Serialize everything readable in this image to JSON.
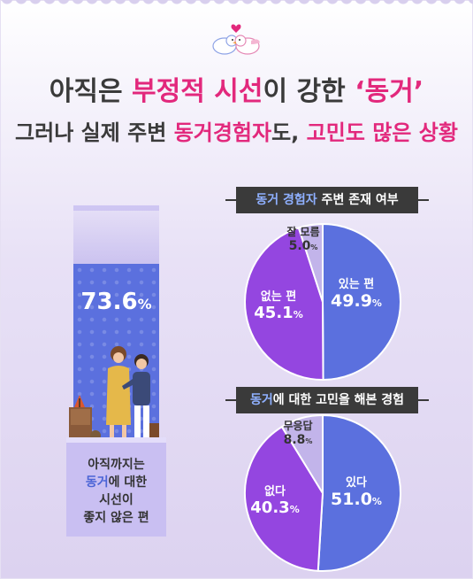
{
  "colors": {
    "accent_pink": "#e2287c",
    "blue": "#5b70de",
    "purple": "#9446e0",
    "lavender": "#c2b4ea",
    "dark": "#3a3a3a"
  },
  "header": {
    "icon": "two-birds-heart-icon",
    "line1": {
      "a": "아직은 ",
      "b": "부정적 시선",
      "c": "이 강한 ",
      "d": "‘동거’"
    },
    "line2": {
      "a": "그러나 실제 주변 ",
      "b": "동거경험자",
      "c": "도, ",
      "d": "고민도 많은 상황"
    }
  },
  "left_bar": {
    "value": "73.6",
    "unit": "%",
    "caption": {
      "l1": "아직까지는",
      "l2a": "동거",
      "l2b": "에 대한",
      "l3": "시선이",
      "l4": "좋지 않은 편"
    }
  },
  "sections": [
    {
      "title_accent": "동거 경험자",
      "title_rest": " 주변 존재 여부"
    },
    {
      "title_accent": "동거",
      "title_rest": "에 대한 고민을 해본 경험"
    }
  ],
  "chart_data": [
    {
      "type": "pie",
      "title": "동거 경험자 주변 존재 여부",
      "slices": [
        {
          "label": "있는 편",
          "value": 49.9,
          "color": "#5b70de"
        },
        {
          "label": "없는 편",
          "value": 45.1,
          "color": "#9446e0"
        },
        {
          "label": "잘 모름",
          "value": 5.0,
          "color": "#c2b4ea"
        }
      ]
    },
    {
      "type": "pie",
      "title": "동거에 대한 고민을 해본 경험",
      "slices": [
        {
          "label": "있다",
          "value": 51.0,
          "color": "#5b70de"
        },
        {
          "label": "없다",
          "value": 40.3,
          "color": "#9446e0"
        },
        {
          "label": "무응답",
          "value": 8.8,
          "color": "#c2b4ea"
        }
      ]
    }
  ]
}
